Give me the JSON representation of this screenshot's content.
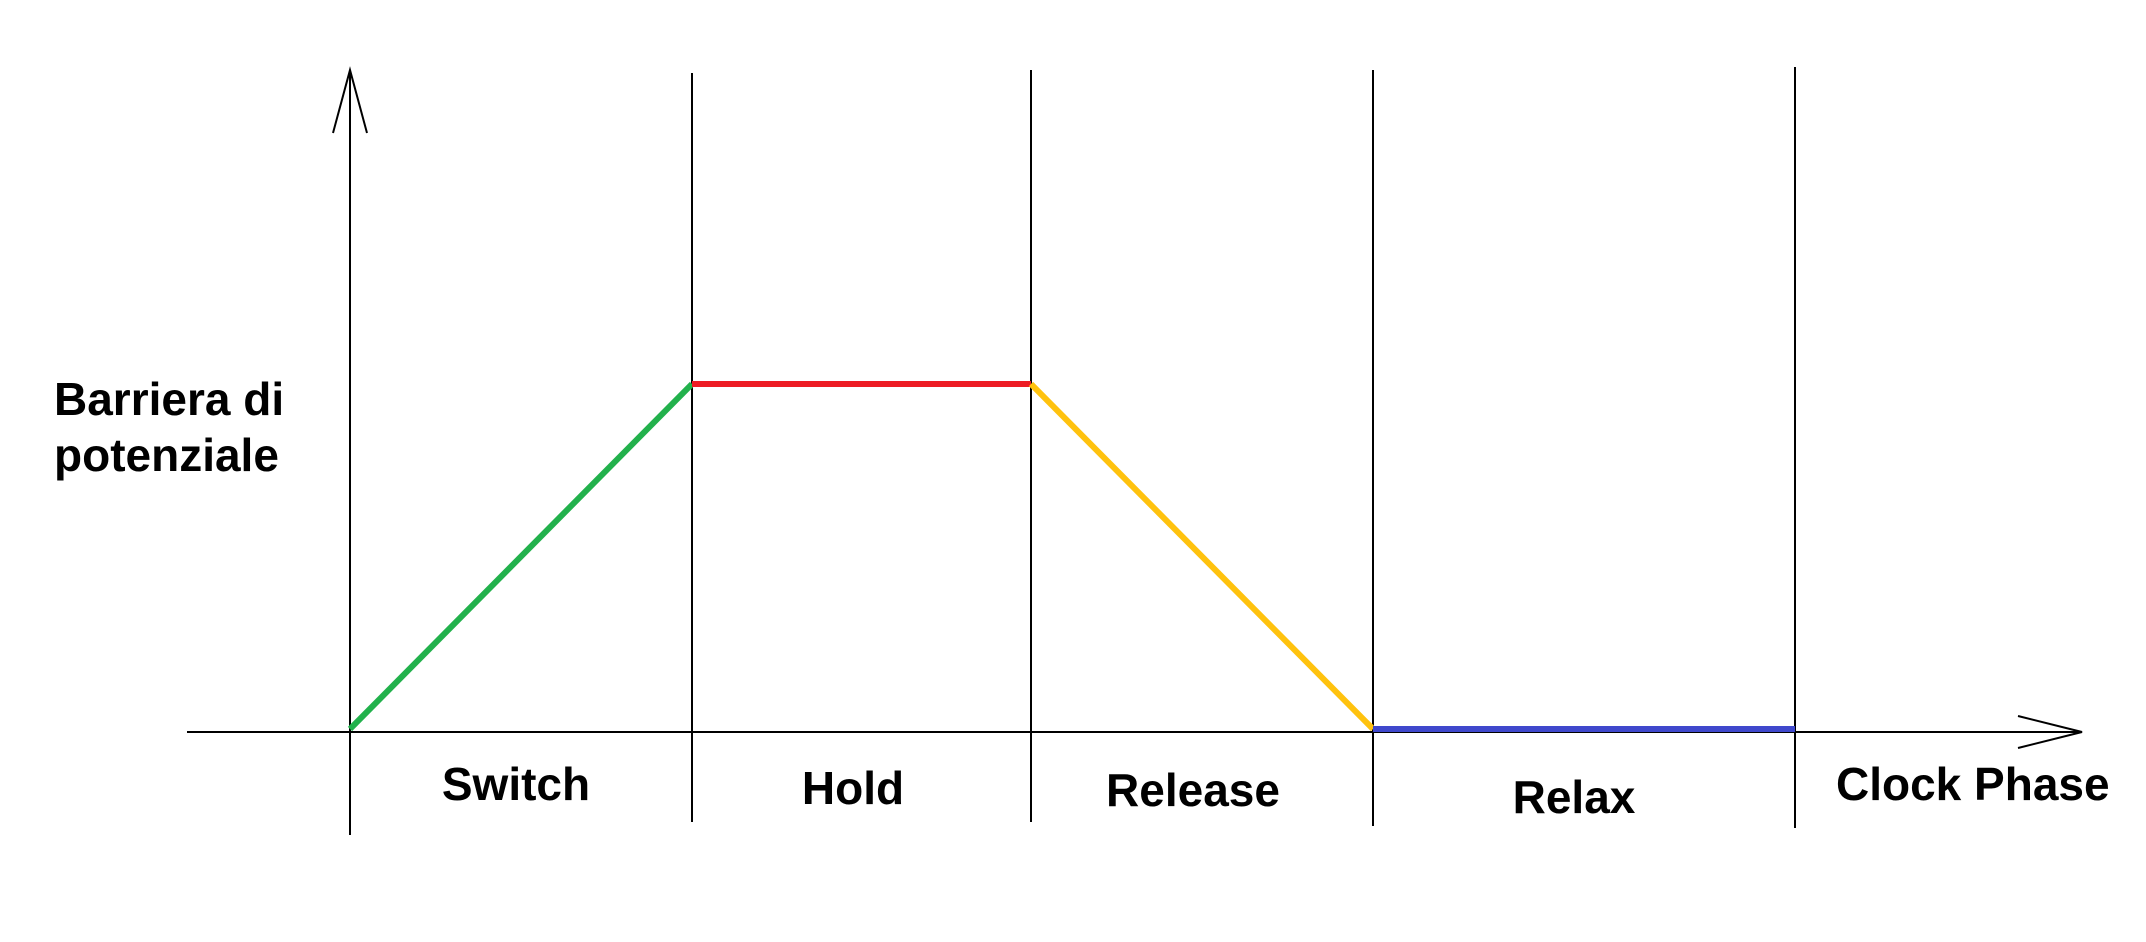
{
  "y_axis_label": [
    "Barriera di",
    "potenziale"
  ],
  "x_axis_label": "Clock Phase",
  "phases": [
    {
      "label": "Switch",
      "level_start": 0,
      "level_end": 1,
      "color": "#22b14c"
    },
    {
      "label": "Hold",
      "level_start": 1,
      "level_end": 1,
      "color": "#ed1c24"
    },
    {
      "label": "Release",
      "level_start": 1,
      "level_end": 0,
      "color": "#ffc20e"
    },
    {
      "label": "Relax",
      "level_start": 0,
      "level_end": 0,
      "color": "#3f48cc"
    }
  ]
}
